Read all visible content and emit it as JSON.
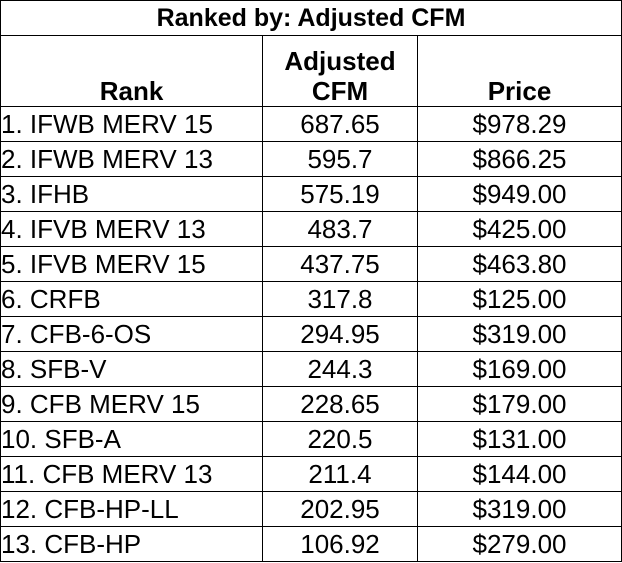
{
  "title": "Ranked by: Adjusted CFM",
  "headers": {
    "rank": "Rank",
    "cfm_line1": "Adjusted",
    "cfm_line2": "CFM",
    "price": "Price"
  },
  "rows": [
    {
      "rank": "1. IFWB MERV 15",
      "cfm": "687.65",
      "price": "$978.29"
    },
    {
      "rank": "2. IFWB MERV 13",
      "cfm": "595.7",
      "price": "$866.25"
    },
    {
      "rank": "3. IFHB",
      "cfm": "575.19",
      "price": "$949.00"
    },
    {
      "rank": "4. IFVB MERV 13",
      "cfm": "483.7",
      "price": "$425.00"
    },
    {
      "rank": "5. IFVB MERV 15",
      "cfm": "437.75",
      "price": "$463.80"
    },
    {
      "rank": "6. CRFB",
      "cfm": "317.8",
      "price": "$125.00"
    },
    {
      "rank": "7. CFB-6-OS",
      "cfm": "294.95",
      "price": "$319.00"
    },
    {
      "rank": "8. SFB-V",
      "cfm": "244.3",
      "price": "$169.00"
    },
    {
      "rank": "9. CFB MERV 15",
      "cfm": "228.65",
      "price": "$179.00"
    },
    {
      "rank": "10. SFB-A",
      "cfm": "220.5",
      "price": "$131.00"
    },
    {
      "rank": "11. CFB MERV 13",
      "cfm": "211.4",
      "price": "$144.00"
    },
    {
      "rank": "12. CFB-HP-LL",
      "cfm": "202.95",
      "price": "$319.00"
    },
    {
      "rank": "13. CFB-HP",
      "cfm": "106.92",
      "price": "$279.00"
    }
  ]
}
